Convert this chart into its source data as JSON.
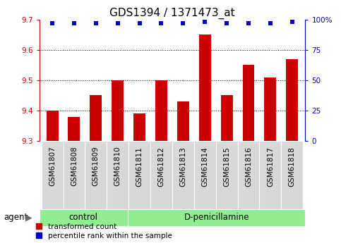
{
  "title": "GDS1394 / 1371473_at",
  "samples": [
    "GSM61807",
    "GSM61808",
    "GSM61809",
    "GSM61810",
    "GSM61811",
    "GSM61812",
    "GSM61813",
    "GSM61814",
    "GSM61815",
    "GSM61816",
    "GSM61817",
    "GSM61818"
  ],
  "red_values": [
    9.4,
    9.38,
    9.45,
    9.5,
    9.39,
    9.5,
    9.43,
    9.65,
    9.45,
    9.55,
    9.51,
    9.57
  ],
  "blue_values": [
    97,
    97,
    97,
    97,
    97,
    97,
    97,
    98,
    97,
    97,
    97,
    98
  ],
  "ylim_left": [
    9.3,
    9.7
  ],
  "ylim_right": [
    0,
    100
  ],
  "yticks_left": [
    9.3,
    9.4,
    9.5,
    9.6,
    9.7
  ],
  "yticks_right": [
    0,
    25,
    50,
    75,
    100
  ],
  "ytick_labels_right": [
    "0",
    "25",
    "50",
    "75",
    "100%"
  ],
  "grid_values": [
    9.4,
    9.5,
    9.6
  ],
  "bar_color": "#cc0000",
  "dot_color": "#0000cc",
  "control_samples": 4,
  "control_label": "control",
  "treatment_label": "D-penicillamine",
  "agent_label": "agent",
  "legend_red": "transformed count",
  "legend_blue": "percentile rank within the sample",
  "bar_width": 0.55,
  "background_plot": "#ffffff",
  "sample_box_color": "#d8d8d8",
  "agent_box_color": "#90ee90",
  "title_fontsize": 11,
  "tick_fontsize": 7.5,
  "label_fontsize": 8.5,
  "legend_fontsize": 7.5
}
